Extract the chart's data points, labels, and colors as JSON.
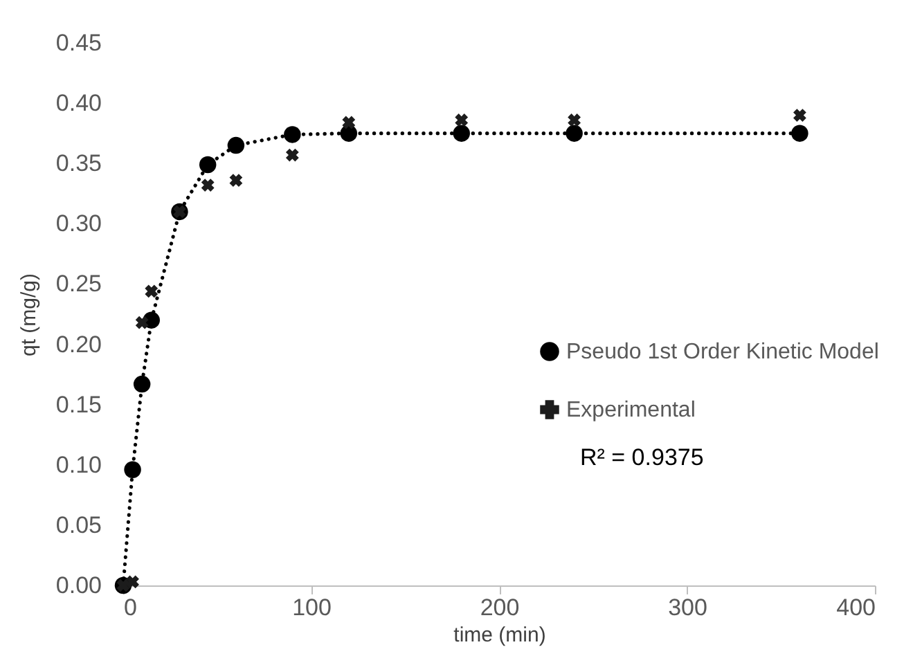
{
  "chart_data": {
    "type": "line",
    "xlabel": "time (min)",
    "ylabel": "qt (mg/g)",
    "xlim": [
      0,
      400
    ],
    "xticks": [
      0,
      100,
      200,
      300,
      400
    ],
    "ylim": [
      0,
      0.45
    ],
    "yticks": [
      {
        "value": 0,
        "label": "0.00"
      },
      {
        "value": 0.05,
        "label": "0.05"
      },
      {
        "value": 0.1,
        "label": "0.10"
      },
      {
        "value": 0.15,
        "label": "0.15"
      },
      {
        "value": 0.2,
        "label": "0.20"
      },
      {
        "value": 0.25,
        "label": "0.25"
      },
      {
        "value": 0.3,
        "label": "0.30"
      },
      {
        "value": 0.35,
        "label": "0.35"
      },
      {
        "value": 0.4,
        "label": "0.40"
      },
      {
        "value": 0.45,
        "label": "0.45"
      }
    ],
    "grid": false,
    "legend": "right",
    "annotations": [
      "R² = 0.9375"
    ],
    "series": [
      {
        "name": "Pseudo 1st Order Kinetic Model",
        "type": "line",
        "color": "#000000",
        "marker": "circle",
        "line_style": "dotted",
        "x": [
          0,
          5,
          10,
          15,
          30,
          45,
          60,
          90,
          120,
          180,
          240,
          360
        ],
        "values": [
          0,
          0.096,
          0.167,
          0.22,
          0.31,
          0.349,
          0.365,
          0.374,
          0.375,
          0.375,
          0.375,
          0.375
        ]
      },
      {
        "name": "Experimental",
        "type": "scatter",
        "color": "#1c1c1c",
        "marker": "cross",
        "x": [
          0,
          5,
          10,
          15,
          30,
          45,
          60,
          90,
          120,
          180,
          240,
          360
        ],
        "values": [
          0,
          0.003,
          0.218,
          0.244,
          0.31,
          0.332,
          0.336,
          0.357,
          0.384,
          0.386,
          0.386,
          0.39
        ]
      }
    ]
  }
}
